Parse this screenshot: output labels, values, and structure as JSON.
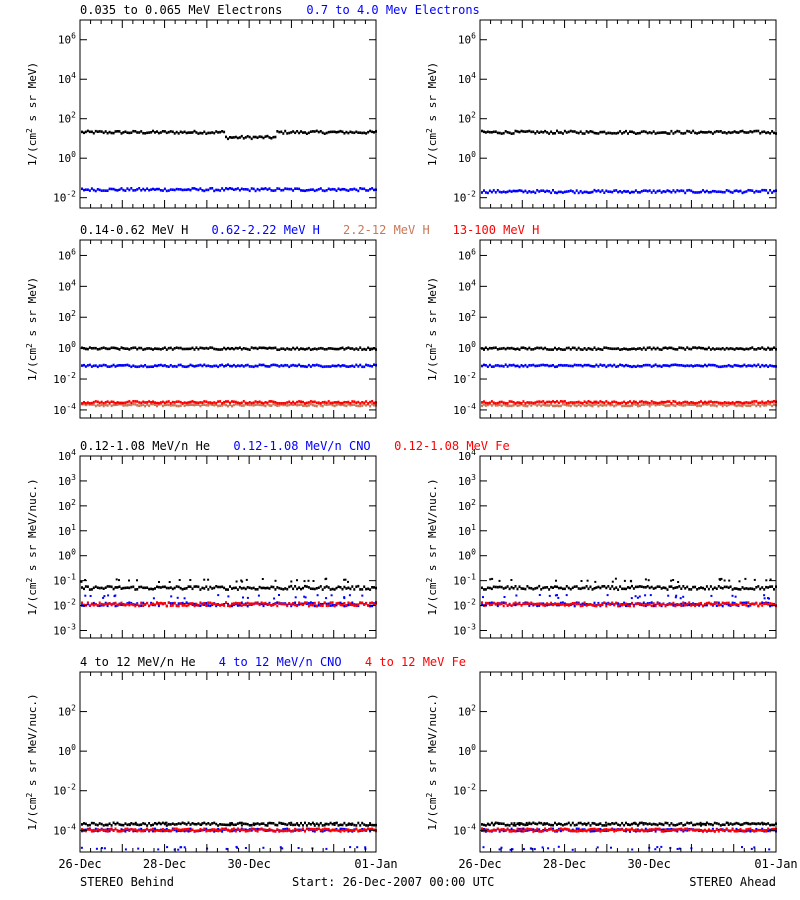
{
  "figure": {
    "footer_left": "STEREO Behind",
    "footer_center": "Start: 26-Dec-2007 00:00 UTC",
    "footer_right": "STEREO Ahead"
  },
  "colors": {
    "black": "#000000",
    "blue": "#0000ff",
    "tan": "#c87858",
    "red": "#ff0000"
  },
  "chart_data": [
    {
      "type": "scatter",
      "row": "electrons",
      "legend": [
        {
          "name": "0.035 to 0.065 MeV Electrons",
          "color": "#000000"
        },
        {
          "name": "0.7 to 4.0 Mev Electrons",
          "color": "#0000ff"
        }
      ],
      "ylabel": "1/(cm2 s sr MeV)",
      "ylabel_parts": {
        "pre": "1/(cm",
        "sup": "2",
        "post": " s sr MeV)"
      },
      "yscale": "log",
      "ylim": [
        0.003,
        10000000
      ],
      "yticks": [
        {
          "value": 0.01,
          "base": "10",
          "exp": "-2"
        },
        {
          "value": 1,
          "base": "10",
          "exp": "0"
        },
        {
          "value": 100,
          "base": "10",
          "exp": "2"
        },
        {
          "value": 10000,
          "base": "10",
          "exp": "4"
        },
        {
          "value": 1000000,
          "base": "10",
          "exp": "6"
        }
      ],
      "xlim": [
        "2007-12-26",
        "2008-01-02"
      ],
      "xticks": [
        "26-Dec",
        "28-Dec",
        "30-Dec",
        "01-Jan"
      ],
      "panels": [
        {
          "spacecraft": "STEREO Behind",
          "series": [
            {
              "name": "0.035 to 0.065 MeV Electrons",
              "color": "#000000",
              "level": 20,
              "dip": {
                "date": "2007-12-30",
                "factor": 0.55
              }
            },
            {
              "name": "0.7 to 4.0 Mev Electrons",
              "color": "#0000ff",
              "level": 0.025
            }
          ]
        },
        {
          "spacecraft": "STEREO Ahead",
          "series": [
            {
              "name": "0.035 to 0.065 MeV Electrons",
              "color": "#000000",
              "level": 20
            },
            {
              "name": "0.7 to 4.0 Mev Electrons",
              "color": "#0000ff",
              "level": 0.02
            }
          ]
        }
      ]
    },
    {
      "type": "scatter",
      "row": "protons",
      "legend": [
        {
          "name": "0.14-0.62 MeV H",
          "color": "#000000"
        },
        {
          "name": "0.62-2.22 MeV H",
          "color": "#0000ff"
        },
        {
          "name": "2.2-12 MeV H",
          "color": "#c87858"
        },
        {
          "name": "13-100 MeV H",
          "color": "#ff0000"
        }
      ],
      "ylabel": "1/(cm2 s sr MeV)",
      "ylabel_parts": {
        "pre": "1/(cm",
        "sup": "2",
        "post": " s sr MeV)"
      },
      "yscale": "log",
      "ylim": [
        3e-05,
        10000000
      ],
      "yticks": [
        {
          "value": 0.0001,
          "base": "10",
          "exp": "-4"
        },
        {
          "value": 0.01,
          "base": "10",
          "exp": "-2"
        },
        {
          "value": 1,
          "base": "10",
          "exp": "0"
        },
        {
          "value": 100,
          "base": "10",
          "exp": "2"
        },
        {
          "value": 10000,
          "base": "10",
          "exp": "4"
        },
        {
          "value": 1000000,
          "base": "10",
          "exp": "6"
        }
      ],
      "xlim": [
        "2007-12-26",
        "2008-01-02"
      ],
      "xticks": [
        "26-Dec",
        "28-Dec",
        "30-Dec",
        "01-Jan"
      ],
      "panels": [
        {
          "spacecraft": "STEREO Behind",
          "series": [
            {
              "name": "0.14-0.62 MeV H",
              "color": "#000000",
              "level": 0.9
            },
            {
              "name": "0.62-2.22 MeV H",
              "color": "#0000ff",
              "level": 0.07
            },
            {
              "name": "2.2-12 MeV H",
              "color": "#c87858",
              "level": 0.0002
            },
            {
              "name": "13-100 MeV H",
              "color": "#ff0000",
              "level": 0.0003
            }
          ]
        },
        {
          "spacecraft": "STEREO Ahead",
          "series": [
            {
              "name": "0.14-0.62 MeV H",
              "color": "#000000",
              "level": 0.9
            },
            {
              "name": "0.62-2.22 MeV H",
              "color": "#0000ff",
              "level": 0.07
            },
            {
              "name": "2.2-12 MeV H",
              "color": "#c87858",
              "level": 0.0002
            },
            {
              "name": "13-100 MeV H",
              "color": "#ff0000",
              "level": 0.0003
            }
          ]
        }
      ]
    },
    {
      "type": "scatter",
      "row": "low-energy-heavy-ions",
      "legend": [
        {
          "name": "0.12-1.08 MeV/n He",
          "color": "#000000"
        },
        {
          "name": "0.12-1.08 MeV/n CNO",
          "color": "#0000ff"
        },
        {
          "name": "0.12-1.08 MeV Fe",
          "color": "#ff0000"
        }
      ],
      "ylabel": "1/(cm2 s sr MeV/nuc.)",
      "ylabel_parts": {
        "pre": "1/(cm",
        "sup": "2",
        "post": " s sr MeV/nuc.)"
      },
      "yscale": "log",
      "ylim": [
        0.0005,
        10000
      ],
      "yticks": [
        {
          "value": 0.001,
          "base": "10",
          "exp": "-3"
        },
        {
          "value": 0.01,
          "base": "10",
          "exp": "-2"
        },
        {
          "value": 0.1,
          "base": "10",
          "exp": "-1"
        },
        {
          "value": 1,
          "base": "10",
          "exp": "0"
        },
        {
          "value": 10,
          "base": "10",
          "exp": "1"
        },
        {
          "value": 100,
          "base": "10",
          "exp": "2"
        },
        {
          "value": 1000,
          "base": "10",
          "exp": "3"
        },
        {
          "value": 10000,
          "base": "10",
          "exp": "4"
        }
      ],
      "xlim": [
        "2007-12-26",
        "2008-01-02"
      ],
      "xticks": [
        "26-Dec",
        "28-Dec",
        "30-Dec",
        "01-Jan"
      ],
      "panels": [
        {
          "spacecraft": "STEREO Behind",
          "series": [
            {
              "name": "0.12-1.08 MeV/n He",
              "color": "#000000",
              "level": 0.05,
              "sparse": 0.1
            },
            {
              "name": "0.12-1.08 MeV/n CNO",
              "color": "#0000ff",
              "level": 0.011,
              "sparse": 0.022
            },
            {
              "name": "0.12-1.08 MeV Fe",
              "color": "#ff0000",
              "level": 0.011
            }
          ]
        },
        {
          "spacecraft": "STEREO Ahead",
          "series": [
            {
              "name": "0.12-1.08 MeV/n He",
              "color": "#000000",
              "level": 0.05,
              "sparse": 0.1
            },
            {
              "name": "0.12-1.08 MeV/n CNO",
              "color": "#0000ff",
              "level": 0.011,
              "sparse": 0.022
            },
            {
              "name": "0.12-1.08 MeV Fe",
              "color": "#ff0000",
              "level": 0.011
            }
          ]
        }
      ]
    },
    {
      "type": "scatter",
      "row": "high-energy-heavy-ions",
      "legend": [
        {
          "name": "4 to 12 MeV/n He",
          "color": "#000000"
        },
        {
          "name": "4 to 12 MeV/n CNO",
          "color": "#0000ff"
        },
        {
          "name": "4 to 12 MeV Fe",
          "color": "#ff0000"
        }
      ],
      "ylabel": "1/(cm2 s sr MeV/nuc.)",
      "ylabel_parts": {
        "pre": "1/(cm",
        "sup": "2",
        "post": " s sr MeV/nuc.)"
      },
      "yscale": "log",
      "ylim": [
        8e-06,
        10000
      ],
      "yticks": [
        {
          "value": 0.0001,
          "base": "10",
          "exp": "-4"
        },
        {
          "value": 0.01,
          "base": "10",
          "exp": "-2"
        },
        {
          "value": 1,
          "base": "10",
          "exp": "0"
        },
        {
          "value": 100,
          "base": "10",
          "exp": "2"
        }
      ],
      "xlim": [
        "2007-12-26",
        "2008-01-02"
      ],
      "xticks": [
        "26-Dec",
        "28-Dec",
        "30-Dec",
        "01-Jan"
      ],
      "panels": [
        {
          "spacecraft": "STEREO Behind",
          "series": [
            {
              "name": "4 to 12 MeV/n He",
              "color": "#000000",
              "level": 0.0002,
              "sparse": 0.0002
            },
            {
              "name": "4 to 12 MeV/n CNO",
              "color": "#0000ff",
              "level": 0.0001,
              "sparse": 1.2e-05
            },
            {
              "name": "4 to 12 MeV Fe",
              "color": "#ff0000",
              "level": 0.0001
            }
          ]
        },
        {
          "spacecraft": "STEREO Ahead",
          "series": [
            {
              "name": "4 to 12 MeV/n He",
              "color": "#000000",
              "level": 0.0002,
              "sparse": 0.0002
            },
            {
              "name": "4 to 12 MeV/n CNO",
              "color": "#0000ff",
              "level": 0.0001,
              "sparse": 1.2e-05
            },
            {
              "name": "4 to 12 MeV Fe",
              "color": "#ff0000",
              "level": 0.0001
            }
          ]
        }
      ]
    }
  ]
}
